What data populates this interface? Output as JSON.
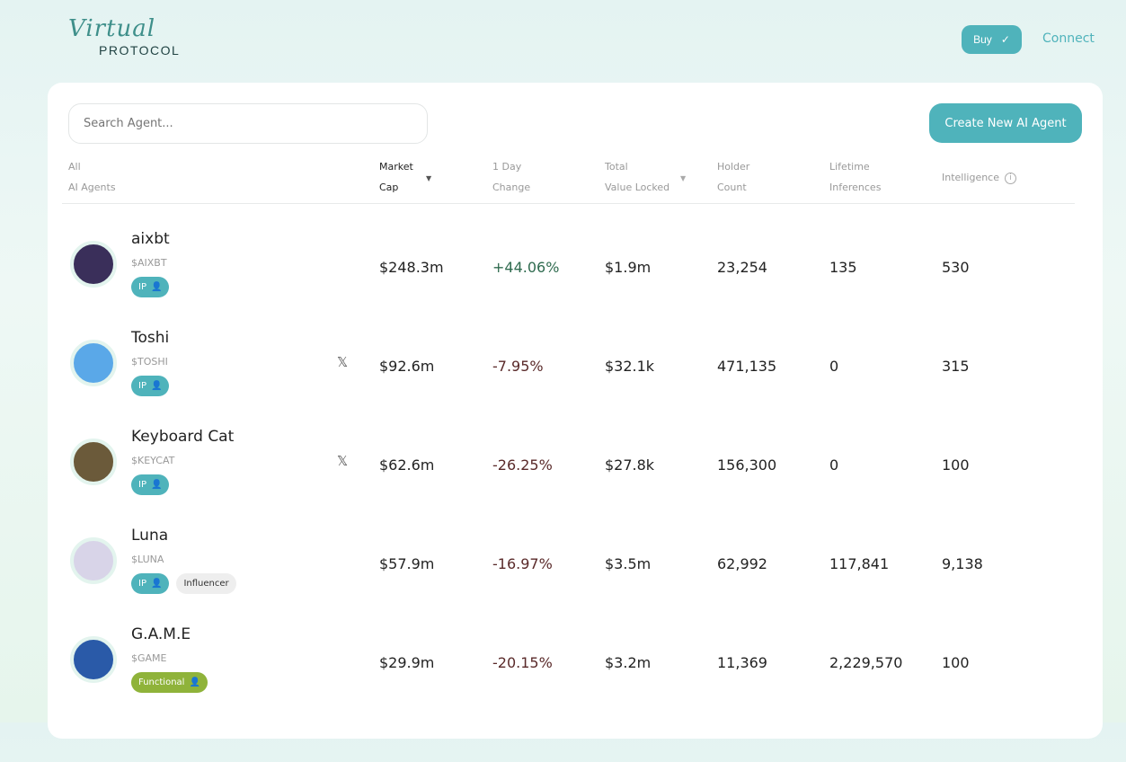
{
  "header": {
    "logo_script": "Virtual",
    "logo_sub": "PROTOCOL",
    "buy_label": "Buy",
    "connect_label": "Connect"
  },
  "search": {
    "placeholder": "Search Agent..."
  },
  "create_label": "Create New AI Agent",
  "columns": {
    "all": "All",
    "all2": "AI Agents",
    "mcap": "Market",
    "mcap2": "Cap",
    "change": "1 Day",
    "change2": "Change",
    "tvl": "Total",
    "tvl2": "Value Locked",
    "holder": "Holder",
    "holder2": "Count",
    "life": "Lifetime",
    "life2": "Inferences",
    "intel": "Intelligence"
  },
  "colors": {
    "accent": "#4fb3bb",
    "positive": "#2f6b4f",
    "negative": "#5a2a2a",
    "functional": "#8fb33a"
  },
  "rows": [
    {
      "name": "aixbt",
      "ticker": "$AIXBT",
      "badge": "IP",
      "extra": "",
      "x": false,
      "mcap": "$248.3m",
      "change": "+44.06%",
      "tvl": "$1.9m",
      "holders": "23,254",
      "inferences": "135",
      "intel": "530",
      "avatar": "#3a2f5a"
    },
    {
      "name": "Toshi",
      "ticker": "$TOSHI",
      "badge": "IP",
      "extra": "",
      "x": true,
      "mcap": "$92.6m",
      "change": "-7.95%",
      "tvl": "$32.1k",
      "holders": "471,135",
      "inferences": "0",
      "intel": "315",
      "avatar": "#5aa8e8"
    },
    {
      "name": "Keyboard Cat",
      "ticker": "$KEYCAT",
      "badge": "IP",
      "extra": "",
      "x": true,
      "mcap": "$62.6m",
      "change": "-26.25%",
      "tvl": "$27.8k",
      "holders": "156,300",
      "inferences": "0",
      "intel": "100",
      "avatar": "#6b5a3a"
    },
    {
      "name": "Luna",
      "ticker": "$LUNA",
      "badge": "IP",
      "extra": "Influencer",
      "x": false,
      "mcap": "$57.9m",
      "change": "-16.97%",
      "tvl": "$3.5m",
      "holders": "62,992",
      "inferences": "117,841",
      "intel": "9,138",
      "avatar": "#d8d4e8"
    },
    {
      "name": "G.A.M.E",
      "ticker": "$GAME",
      "badge": "Functional",
      "extra": "",
      "x": false,
      "mcap": "$29.9m",
      "change": "-20.15%",
      "tvl": "$3.2m",
      "holders": "11,369",
      "inferences": "2,229,570",
      "intel": "100",
      "avatar": "#2a5aa8"
    }
  ]
}
